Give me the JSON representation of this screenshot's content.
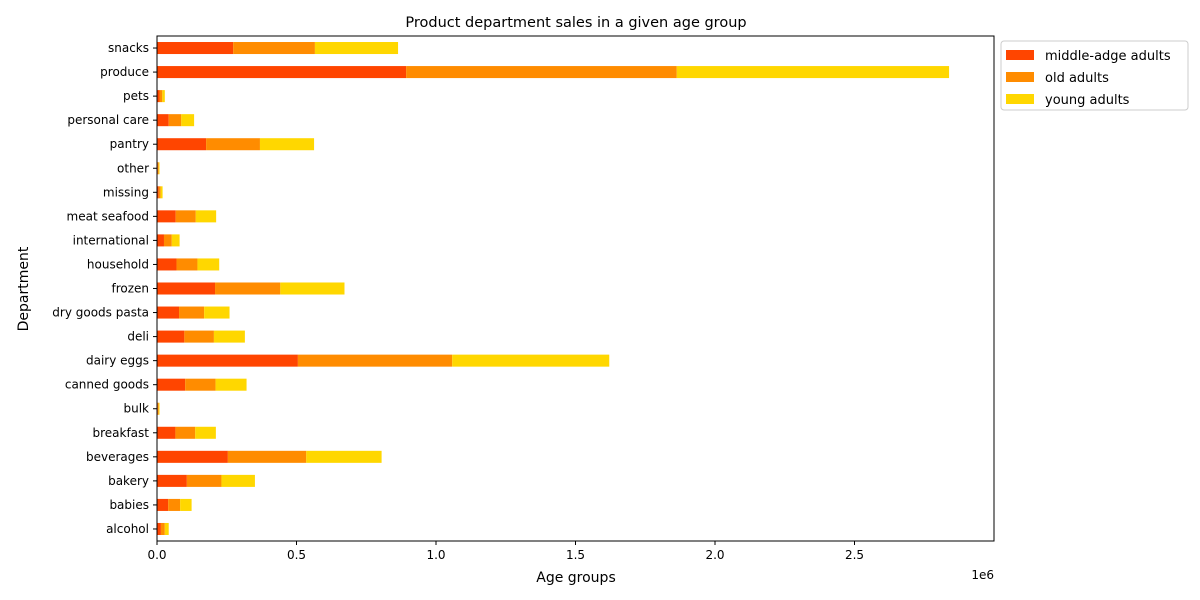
{
  "chart_data": {
    "type": "bar",
    "orientation": "horizontal",
    "stacked": true,
    "title": "Product department sales in a given age group",
    "xlabel": "Age groups",
    "ylabel": "Department",
    "x_offset_label": "1e6",
    "xlim": [
      0,
      3000000
    ],
    "xticks": [
      0,
      500000,
      1000000,
      1500000,
      2000000,
      2500000
    ],
    "xtick_labels": [
      "0.0",
      "0.5",
      "1.0",
      "1.5",
      "2.0",
      "2.5"
    ],
    "grid": false,
    "legend_position": "upper-right-outside",
    "categories": [
      "alcohol",
      "babies",
      "bakery",
      "beverages",
      "breakfast",
      "bulk",
      "canned goods",
      "dairy eggs",
      "deli",
      "dry goods pasta",
      "frozen",
      "household",
      "international",
      "meat seafood",
      "missing",
      "other",
      "pantry",
      "personal care",
      "pets",
      "produce",
      "snacks"
    ],
    "series": [
      {
        "name": "middle-adge adults",
        "color": "#ff4500",
        "values": [
          14000,
          40000,
          107000,
          254000,
          66000,
          3000,
          101000,
          505000,
          98000,
          79000,
          208000,
          70000,
          25000,
          67000,
          6000,
          3000,
          176000,
          42000,
          9000,
          893000,
          273000
        ]
      },
      {
        "name": "old adults",
        "color": "#ff8c00",
        "values": [
          14000,
          43000,
          124000,
          281000,
          71000,
          3000,
          109000,
          553000,
          106000,
          90000,
          234000,
          75000,
          28000,
          72000,
          7000,
          3000,
          193000,
          45000,
          10000,
          970000,
          293000
        ]
      },
      {
        "name": "young adults",
        "color": "#ffd700",
        "values": [
          14000,
          41000,
          120000,
          270000,
          74000,
          3000,
          111000,
          563000,
          111000,
          91000,
          230000,
          78000,
          28000,
          73000,
          7000,
          3000,
          194000,
          46000,
          9000,
          976000,
          298000
        ]
      }
    ]
  }
}
